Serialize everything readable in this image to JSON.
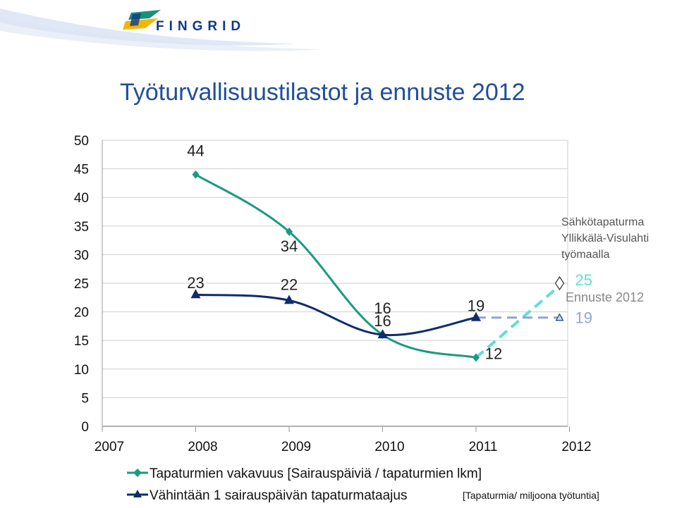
{
  "brand": {
    "name": "FINGRID",
    "colors": {
      "navy": "#0E3A84",
      "yellow": "#F2B705",
      "teal": "#1A8F7A"
    }
  },
  "slide": {
    "title": "Työturvallisuustilastot ja ennuste 2012"
  },
  "chart_data": {
    "type": "line",
    "x": [
      "2007",
      "2008",
      "2009",
      "2010",
      "2011",
      "2012"
    ],
    "ylim": [
      0,
      50
    ],
    "yticks": [
      "0",
      "5",
      "10",
      "15",
      "20",
      "25",
      "30",
      "35",
      "40",
      "45",
      "50"
    ],
    "grid": true,
    "series": [
      {
        "name": "Tapaturmien vakavuus [Sairauspäiviä / tapaturmien lkm]",
        "color": "#1A9B80",
        "marker": "diamond",
        "points": [
          {
            "x": "2008",
            "y": 44,
            "label": "44"
          },
          {
            "x": "2009",
            "y": 34,
            "label": "34"
          },
          {
            "x": "2010",
            "y": 16,
            "label": "16"
          },
          {
            "x": "2011",
            "y": 12,
            "label": "12"
          }
        ],
        "forecast": {
          "from": "2011",
          "to": "2012",
          "y": 25,
          "label": "25",
          "color": "#5FE0D0"
        }
      },
      {
        "name": "Vähintään 1 sairauspäivän tapaturmataajus",
        "color": "#0F2C6B",
        "marker": "triangle",
        "points": [
          {
            "x": "2008",
            "y": 23,
            "label": "23"
          },
          {
            "x": "2009",
            "y": 22,
            "label": "22"
          },
          {
            "x": "2010",
            "y": 16,
            "label": "16"
          },
          {
            "x": "2011",
            "y": 19,
            "label": "19"
          }
        ],
        "forecast": {
          "from": "2011",
          "to": "2012",
          "y": 19,
          "label": "19",
          "color": "#8DA6D6"
        }
      }
    ],
    "annotations": {
      "accident_line1": "Sähkötapaturma",
      "accident_line2": "Yllikkälä-Visulahti",
      "accident_line3": "työmaalla",
      "forecast_label": "Ennuste 2012",
      "unit_note": "[Tapaturmia/ miljoona työtuntia]"
    },
    "legend": {
      "position": "bottom"
    }
  }
}
